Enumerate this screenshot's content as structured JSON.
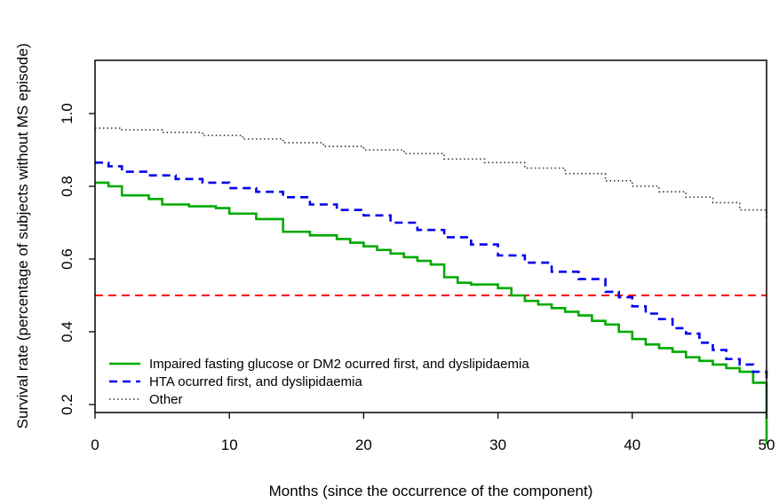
{
  "chart_data": {
    "type": "line",
    "subtype": "step (Kaplan-Meier survival curves)",
    "title": "",
    "xlabel": "Months (since the occurrence of the component)",
    "ylabel": "Survival rate (percentage of subjects without MS episode)",
    "xlim": [
      0,
      50
    ],
    "ylim": [
      0.2,
      1.0
    ],
    "x_ticks": [
      "0",
      "10",
      "20",
      "30",
      "40",
      "50"
    ],
    "y_ticks": [
      "0.2",
      "0.4",
      "0.6",
      "0.8",
      "1.0"
    ],
    "grid": false,
    "legend_position": "bottom-left",
    "reference_line": {
      "y": 0.5,
      "color": "#ff0000",
      "style": "dashed"
    },
    "series": [
      {
        "name": "Impaired fasting glucose or DM2 ocurred first, and dyslipidaemia",
        "color": "#00aa00",
        "style": "solid",
        "x": [
          0,
          1,
          2,
          4,
          5,
          7,
          9,
          10,
          12,
          14,
          16,
          18,
          19,
          20,
          21,
          22,
          23,
          24,
          25,
          26,
          27,
          28,
          30,
          31,
          32,
          33,
          34,
          35,
          36,
          37,
          38,
          39,
          40,
          41,
          42,
          43,
          44,
          45,
          46,
          47,
          48,
          49,
          50
        ],
        "y": [
          0.81,
          0.8,
          0.775,
          0.765,
          0.75,
          0.745,
          0.74,
          0.725,
          0.71,
          0.675,
          0.665,
          0.655,
          0.645,
          0.635,
          0.625,
          0.615,
          0.605,
          0.595,
          0.585,
          0.55,
          0.535,
          0.53,
          0.52,
          0.5,
          0.485,
          0.475,
          0.465,
          0.455,
          0.445,
          0.43,
          0.42,
          0.4,
          0.38,
          0.365,
          0.355,
          0.345,
          0.33,
          0.32,
          0.31,
          0.3,
          0.29,
          0.26,
          0.09
        ]
      },
      {
        "name": "HTA ocurred first, and dyslipidaemia",
        "color": "#0000ee",
        "style": "dashed",
        "x": [
          0,
          1,
          2,
          4,
          6,
          8,
          10,
          12,
          14,
          16,
          18,
          20,
          22,
          24,
          26,
          28,
          30,
          32,
          34,
          36,
          38,
          39,
          40,
          41,
          42,
          43,
          44,
          45,
          46,
          47,
          48,
          49,
          50
        ],
        "y": [
          0.865,
          0.855,
          0.84,
          0.83,
          0.82,
          0.81,
          0.795,
          0.785,
          0.77,
          0.75,
          0.735,
          0.72,
          0.7,
          0.68,
          0.66,
          0.64,
          0.61,
          0.59,
          0.565,
          0.545,
          0.51,
          0.495,
          0.47,
          0.45,
          0.435,
          0.41,
          0.395,
          0.37,
          0.35,
          0.325,
          0.31,
          0.29,
          0.27
        ]
      },
      {
        "name": "Other",
        "color": "#333333",
        "style": "dotted",
        "x": [
          0,
          2,
          5,
          8,
          11,
          14,
          17,
          20,
          23,
          26,
          29,
          32,
          35,
          38,
          40,
          42,
          44,
          46,
          48,
          50
        ],
        "y": [
          0.96,
          0.955,
          0.948,
          0.94,
          0.93,
          0.92,
          0.91,
          0.9,
          0.89,
          0.875,
          0.865,
          0.85,
          0.835,
          0.815,
          0.8,
          0.785,
          0.77,
          0.755,
          0.735,
          0.715
        ]
      }
    ]
  }
}
